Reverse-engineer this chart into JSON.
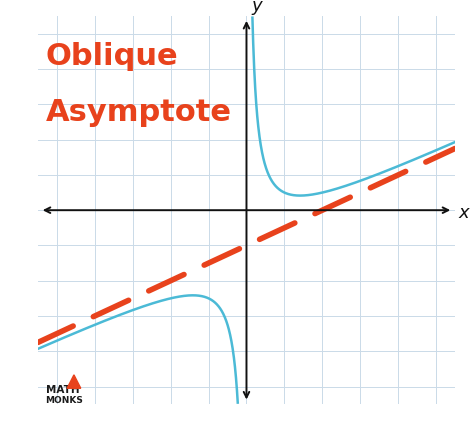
{
  "title_line1": "Oblique",
  "title_line2": "Asymptote",
  "title_color": "#E8421C",
  "title_fontsize": 22,
  "bg_color": "#FFFFFF",
  "grid_color": "#CADAE8",
  "axis_color": "#111111",
  "curve_color": "#4BBAD6",
  "asymptote_color": "#E8421C",
  "curve_linewidth": 1.8,
  "asymptote_linewidth": 4.0,
  "xlim": [
    -5.5,
    5.5
  ],
  "ylim": [
    -5.5,
    5.5
  ],
  "xlabel": "x",
  "ylabel": "y",
  "asym_slope": 0.5,
  "asym_intercept": -1.0
}
